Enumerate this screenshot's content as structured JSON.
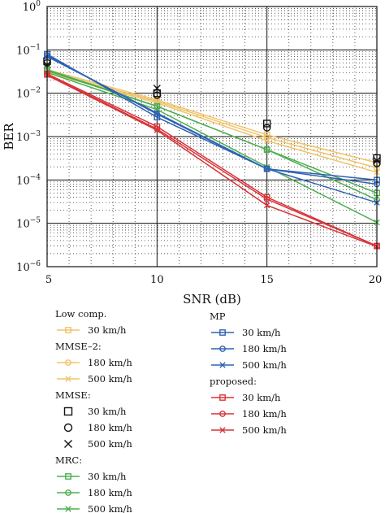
{
  "chart_data": {
    "type": "line",
    "xlabel": "SNR (dB)",
    "ylabel": "BER",
    "x": [
      5,
      10,
      15,
      20
    ],
    "xticks": [
      "5",
      "10",
      "15",
      "20"
    ],
    "xlim": [
      5,
      20
    ],
    "ylim": [
      1e-06,
      1
    ],
    "yscale": "log",
    "yticks": [
      {
        "value": 1,
        "base": "10",
        "exp": "0"
      },
      {
        "value": 0.1,
        "base": "10",
        "exp": "−1"
      },
      {
        "value": 0.01,
        "base": "10",
        "exp": "−2"
      },
      {
        "value": 0.001,
        "base": "10",
        "exp": "−3"
      },
      {
        "value": 0.0001,
        "base": "10",
        "exp": "−4"
      },
      {
        "value": 1e-05,
        "base": "10",
        "exp": "−5"
      },
      {
        "value": 1e-06,
        "base": "10",
        "exp": "−6"
      }
    ],
    "grid": true,
    "legend_position": "below",
    "groups": [
      {
        "title": "Low comp.",
        "color": "#f0c46a",
        "series": [
          {
            "name": "30 km/h",
            "marker": "square",
            "values": [
              0.035,
              0.007,
              0.0011,
              0.00025
            ]
          },
          {
            "name": "180 km/h",
            "marker": "circle",
            "values": [
              0.032,
              0.0065,
              0.00095,
              0.00019
            ]
          },
          {
            "name": "500 km/h",
            "marker": "x",
            "values": [
              0.03,
              0.006,
              0.0008,
              0.00015
            ]
          }
        ],
        "legend_layout": [
          {
            "kind": "title",
            "text": "Low comp."
          },
          {
            "kind": "entry",
            "series": 0
          },
          {
            "kind": "title",
            "text": "MMSE–2:"
          },
          {
            "kind": "entry",
            "series": 1
          },
          {
            "kind": "entry",
            "series": 2
          }
        ]
      },
      {
        "title": "MMSE:",
        "color": "#111111",
        "series": [
          {
            "name": "30 km/h",
            "marker": "square",
            "values": [
              0.055,
              0.01,
              0.002,
              0.00032
            ]
          },
          {
            "name": "180 km/h",
            "marker": "circle",
            "values": [
              0.05,
              0.009,
              0.0016,
              0.00024
            ]
          },
          {
            "name": "500 km/h",
            "marker": "x",
            "values": [
              0.045,
              0.013,
              null,
              0.00028
            ]
          }
        ],
        "legend_layout": [
          {
            "kind": "title",
            "text": "MMSE:"
          },
          {
            "kind": "entry",
            "series": 0
          },
          {
            "kind": "entry",
            "series": 1
          },
          {
            "kind": "entry",
            "series": 2
          }
        ]
      },
      {
        "title": "MRC:",
        "color": "#4caf50",
        "series": [
          {
            "name": "30 km/h",
            "marker": "square",
            "values": [
              0.035,
              0.005,
              0.0005,
              5e-05
            ]
          },
          {
            "name": "180 km/h",
            "marker": "circle",
            "values": [
              0.033,
              0.005,
              0.0005,
              3.5e-05
            ]
          },
          {
            "name": "500 km/h",
            "marker": "x",
            "values": [
              0.03,
              0.0042,
              0.0002,
              1.05e-05
            ]
          }
        ],
        "legend_layout": [
          {
            "kind": "title",
            "text": "MRC:"
          },
          {
            "kind": "entry",
            "series": 0
          },
          {
            "kind": "entry",
            "series": 1
          },
          {
            "kind": "entry",
            "series": 2
          }
        ]
      },
      {
        "title": "MP",
        "color": "#2f63b3",
        "series": [
          {
            "name": "30 km/h",
            "marker": "square",
            "values": [
              0.08,
              0.0028,
              0.00018,
              0.0001
            ]
          },
          {
            "name": "180 km/h",
            "marker": "circle",
            "values": [
              0.075,
              0.0033,
              0.00018,
              8e-05
            ]
          },
          {
            "name": "500 km/h",
            "marker": "x",
            "values": [
              0.07,
              0.0035,
              0.00018,
              3e-05
            ]
          }
        ],
        "legend_layout": [
          {
            "kind": "title",
            "text": "MP"
          },
          {
            "kind": "entry",
            "series": 0
          },
          {
            "kind": "entry",
            "series": 1
          },
          {
            "kind": "entry",
            "series": 2
          }
        ]
      },
      {
        "title": "proposed:",
        "color": "#d9343a",
        "series": [
          {
            "name": "30 km/h",
            "marker": "square",
            "values": [
              0.028,
              0.0017,
              4e-05,
              3e-06
            ]
          },
          {
            "name": "180 km/h",
            "marker": "circle",
            "values": [
              0.027,
              0.0015,
              3.6e-05,
              3e-06
            ]
          },
          {
            "name": "500 km/h",
            "marker": "x",
            "values": [
              0.026,
              0.0014,
              2.6e-05,
              2.9e-06
            ]
          }
        ],
        "legend_layout": [
          {
            "kind": "title",
            "text": "proposed:"
          },
          {
            "kind": "entry",
            "series": 0
          },
          {
            "kind": "entry",
            "series": 1
          },
          {
            "kind": "entry",
            "series": 2
          }
        ]
      }
    ]
  }
}
